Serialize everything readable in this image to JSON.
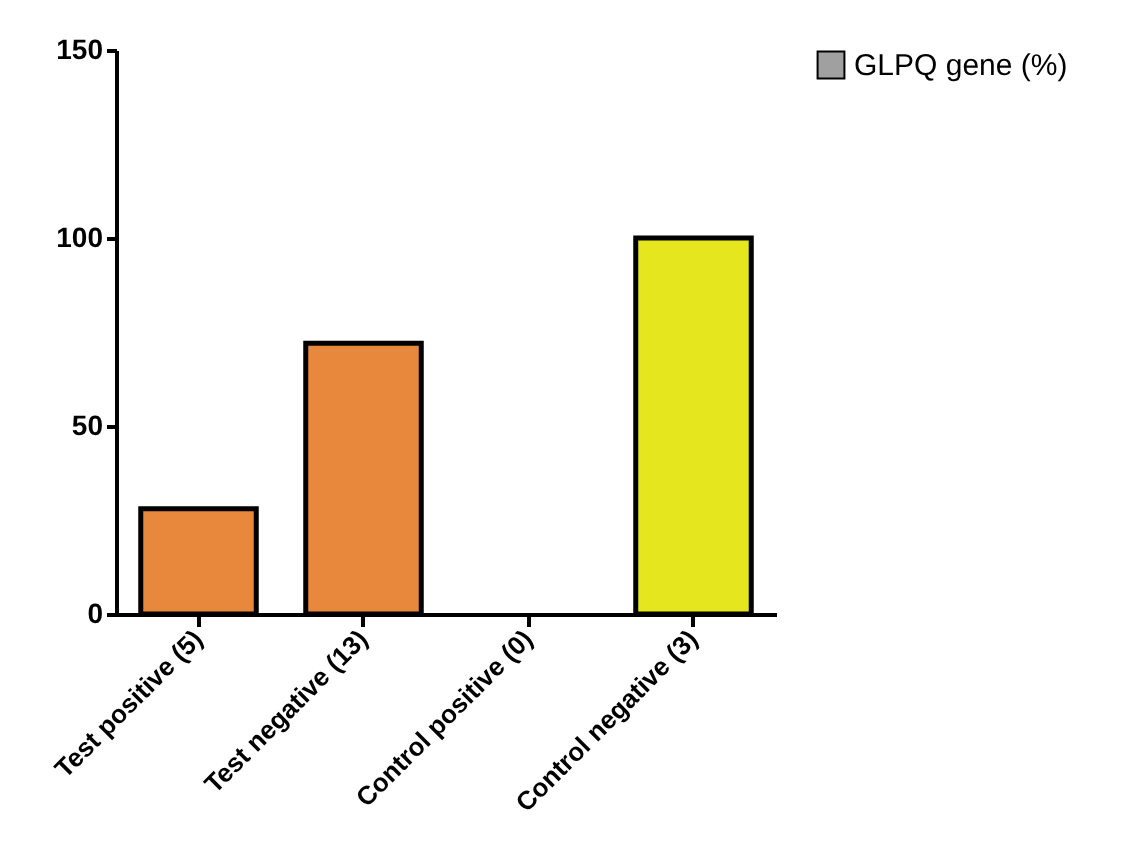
{
  "chart_data": {
    "type": "bar",
    "categories": [
      "Test positive (5)",
      "Test negative (13)",
      "Control positive (0)",
      "Control negative (3)"
    ],
    "series": [
      {
        "name": "GLPQ gene (%)",
        "color": "#a0a0a0",
        "colors": [
          "#e8883c",
          "#e8883c",
          "#e8883c",
          "#e6e61e"
        ],
        "values": [
          28,
          72,
          0,
          100
        ]
      }
    ],
    "ylim": [
      0,
      150
    ],
    "yticks": [
      0,
      50,
      100,
      150
    ],
    "grid": false,
    "legend": "top right"
  }
}
